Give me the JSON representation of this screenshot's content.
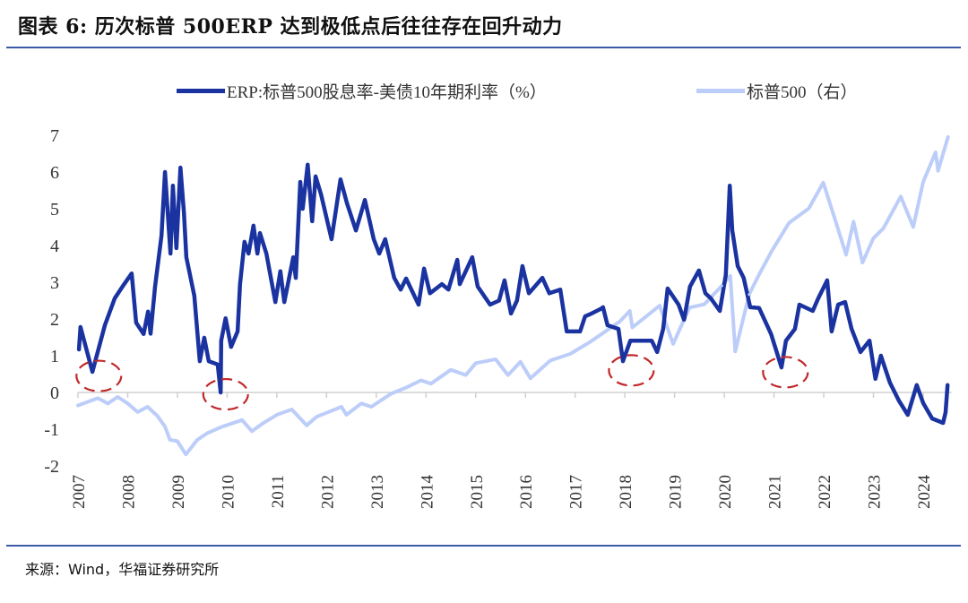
{
  "title": "图表 6:  历次标普 500ERP 达到极低点后往往存在回升动力",
  "source": "来源：Wind，华福证券研究所",
  "chart_data": {
    "type": "line",
    "title": "图表 6:  历次标普 500ERP 达到极低点后往往存在回升动力",
    "xlabel": "",
    "ylabel": "",
    "xlim": [
      2007,
      2024.5
    ],
    "ylim": [
      -2,
      7
    ],
    "y2lim": [
      506,
      5506
    ],
    "grid": false,
    "legend_position": "top",
    "yticks": [
      "7",
      "6",
      "5",
      "4",
      "3",
      "2",
      "1",
      "0",
      "-1",
      "-2"
    ],
    "xticks": [
      "2007",
      "2008",
      "2009",
      "2010",
      "2011",
      "2012",
      "2013",
      "2014",
      "2015",
      "2016",
      "2017",
      "2018",
      "2019",
      "2020",
      "2021",
      "2022",
      "2023",
      "2024"
    ],
    "series": [
      {
        "name": "ERP:标普500股息率-美债10年期利率（%）",
        "axis": "left",
        "color": "#1a33a0",
        "x": [
          2007.02,
          2007.05,
          2007.29,
          2007.54,
          2007.74,
          2007.92,
          2008.08,
          2008.17,
          2008.32,
          2008.41,
          2008.46,
          2008.55,
          2008.68,
          2008.75,
          2008.86,
          2008.91,
          2008.98,
          2009.06,
          2009.13,
          2009.18,
          2009.34,
          2009.45,
          2009.54,
          2009.63,
          2009.81,
          2009.87,
          2009.88,
          2009.97,
          2010.08,
          2010.21,
          2010.26,
          2010.35,
          2010.43,
          2010.53,
          2010.61,
          2010.66,
          2010.79,
          2010.97,
          2011.07,
          2011.15,
          2011.33,
          2011.38,
          2011.47,
          2011.52,
          2011.62,
          2011.71,
          2011.78,
          2011.89,
          2012.1,
          2012.28,
          2012.41,
          2012.59,
          2012.77,
          2012.95,
          2013.06,
          2013.18,
          2013.36,
          2013.49,
          2013.6,
          2013.85,
          2013.96,
          2014.08,
          2014.32,
          2014.45,
          2014.63,
          2014.68,
          2014.93,
          2015.04,
          2015.29,
          2015.47,
          2015.58,
          2015.71,
          2015.83,
          2015.94,
          2016.07,
          2016.34,
          2016.48,
          2016.7,
          2016.83,
          2017.1,
          2017.2,
          2017.33,
          2017.51,
          2017.56,
          2017.65,
          2017.87,
          2017.96,
          2018.11,
          2018.54,
          2018.65,
          2018.77,
          2018.86,
          2019.08,
          2019.19,
          2019.31,
          2019.49,
          2019.62,
          2019.73,
          2019.91,
          2020.03,
          2020.11,
          2020.16,
          2020.27,
          2020.39,
          2020.52,
          2020.7,
          2020.94,
          2021.15,
          2021.24,
          2021.42,
          2021.51,
          2021.78,
          2021.89,
          2022.07,
          2022.16,
          2022.29,
          2022.43,
          2022.56,
          2022.74,
          2022.92,
          2023.04,
          2023.15,
          2023.33,
          2023.51,
          2023.69,
          2023.87,
          2024.0,
          2024.18,
          2024.4,
          2024.45,
          2024.49
        ],
        "values": [
          1.17,
          1.78,
          0.56,
          1.83,
          2.56,
          2.93,
          3.24,
          1.9,
          1.59,
          2.2,
          1.6,
          2.88,
          4.27,
          6.0,
          3.78,
          5.63,
          3.93,
          6.12,
          4.9,
          3.68,
          2.63,
          0.85,
          1.49,
          0.85,
          0.76,
          0.0,
          1.41,
          2.02,
          1.24,
          1.66,
          2.95,
          4.1,
          3.78,
          4.54,
          3.78,
          4.34,
          3.78,
          2.46,
          3.3,
          2.46,
          3.68,
          3.12,
          5.73,
          5.0,
          6.2,
          4.66,
          5.88,
          5.39,
          4.17,
          5.8,
          5.15,
          4.41,
          5.24,
          4.17,
          3.78,
          4.17,
          3.12,
          2.8,
          3.1,
          2.39,
          3.37,
          2.7,
          2.95,
          2.8,
          3.61,
          2.95,
          3.68,
          2.88,
          2.39,
          2.5,
          3.05,
          2.15,
          2.5,
          3.44,
          2.7,
          3.12,
          2.7,
          2.8,
          1.66,
          1.66,
          2.07,
          2.15,
          2.27,
          2.32,
          1.83,
          1.73,
          0.85,
          1.41,
          1.41,
          1.1,
          1.73,
          2.83,
          2.39,
          1.98,
          2.88,
          3.32,
          2.7,
          2.56,
          2.22,
          3.2,
          5.63,
          4.41,
          3.44,
          3.12,
          2.32,
          2.3,
          1.59,
          0.68,
          1.41,
          1.73,
          2.39,
          2.22,
          2.56,
          3.05,
          1.66,
          2.39,
          2.46,
          1.73,
          1.1,
          1.41,
          0.37,
          1.0,
          0.27,
          -0.22,
          -0.61,
          0.2,
          -0.29,
          -0.71,
          -0.83,
          -0.54,
          0.2
        ]
      },
      {
        "name": "标普500（右）",
        "axis": "right",
        "color": "#bccdf9",
        "x": [
          2007.0,
          2007.4,
          2007.6,
          2007.8,
          2008.0,
          2008.2,
          2008.4,
          2008.6,
          2008.75,
          2008.85,
          2009.0,
          2009.17,
          2009.4,
          2009.6,
          2009.9,
          2010.3,
          2010.5,
          2010.7,
          2011.0,
          2011.3,
          2011.6,
          2011.8,
          2012.0,
          2012.3,
          2012.4,
          2012.7,
          2012.9,
          2013.3,
          2013.6,
          2013.9,
          2014.1,
          2014.5,
          2014.8,
          2015.0,
          2015.4,
          2015.65,
          2015.9,
          2016.1,
          2016.5,
          2016.9,
          2017.3,
          2017.9,
          2018.1,
          2018.15,
          2018.7,
          2018.97,
          2019.3,
          2019.6,
          2019.95,
          2020.12,
          2020.22,
          2020.5,
          2020.7,
          2020.95,
          2021.3,
          2021.7,
          2021.99,
          2022.2,
          2022.45,
          2022.6,
          2022.78,
          2023.0,
          2023.2,
          2023.55,
          2023.8,
          2024.0,
          2024.25,
          2024.3,
          2024.5
        ],
        "values": [
          1420,
          1530,
          1450,
          1550,
          1450,
          1320,
          1400,
          1260,
          1100,
          900,
          880,
          680,
          900,
          1000,
          1100,
          1200,
          1030,
          1140,
          1280,
          1360,
          1120,
          1250,
          1310,
          1400,
          1280,
          1450,
          1400,
          1600,
          1690,
          1800,
          1750,
          1960,
          1880,
          2060,
          2120,
          1880,
          2080,
          1830,
          2100,
          2200,
          2380,
          2690,
          2850,
          2600,
          2930,
          2350,
          2900,
          2950,
          3230,
          3380,
          2237,
          3100,
          3400,
          3750,
          4180,
          4400,
          4790,
          4300,
          3700,
          4200,
          3580,
          3950,
          4100,
          4580,
          4120,
          4800,
          5250,
          4970,
          5480
        ]
      }
    ],
    "annotations": [
      {
        "type": "dashed-ellipse",
        "x": 2007.42,
        "y": 0.45,
        "color": "#c0282a"
      },
      {
        "type": "dashed-ellipse",
        "x": 2009.97,
        "y": -0.05,
        "color": "#c0282a"
      },
      {
        "type": "dashed-ellipse",
        "x": 2018.13,
        "y": 0.6,
        "color": "#c0282a"
      },
      {
        "type": "dashed-ellipse",
        "x": 2021.23,
        "y": 0.55,
        "color": "#c0282a"
      }
    ]
  }
}
